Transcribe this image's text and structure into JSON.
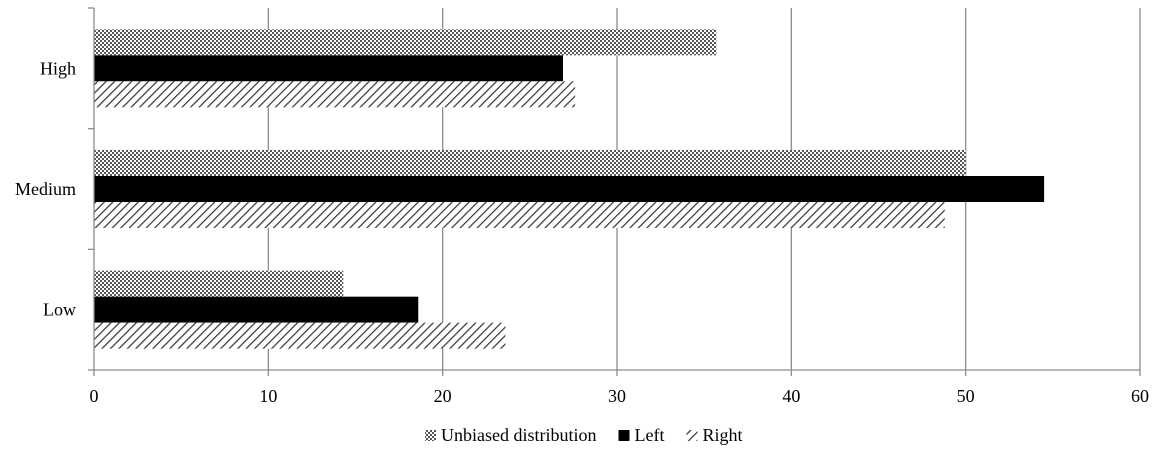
{
  "chart_data": {
    "type": "bar",
    "orientation": "horizontal",
    "title": "",
    "xlabel": "",
    "ylabel": "",
    "categories": [
      "High",
      "Medium",
      "Low"
    ],
    "xlim": [
      0,
      60
    ],
    "xticks": [
      "0",
      "10",
      "20",
      "30",
      "40",
      "50",
      "60"
    ],
    "grid": "vertical",
    "legend_position": "bottom",
    "series": [
      {
        "name": "Unbiased distribution",
        "pattern": "crosshatch",
        "color": "#555555",
        "values": [
          35.7,
          50.0,
          14.3
        ]
      },
      {
        "name": "Left",
        "pattern": "solid",
        "color": "#000000",
        "values": [
          26.9,
          54.5,
          18.6
        ]
      },
      {
        "name": "Right",
        "pattern": "diagonal",
        "color": "#333333",
        "values": [
          27.6,
          48.8,
          23.6
        ]
      }
    ]
  }
}
